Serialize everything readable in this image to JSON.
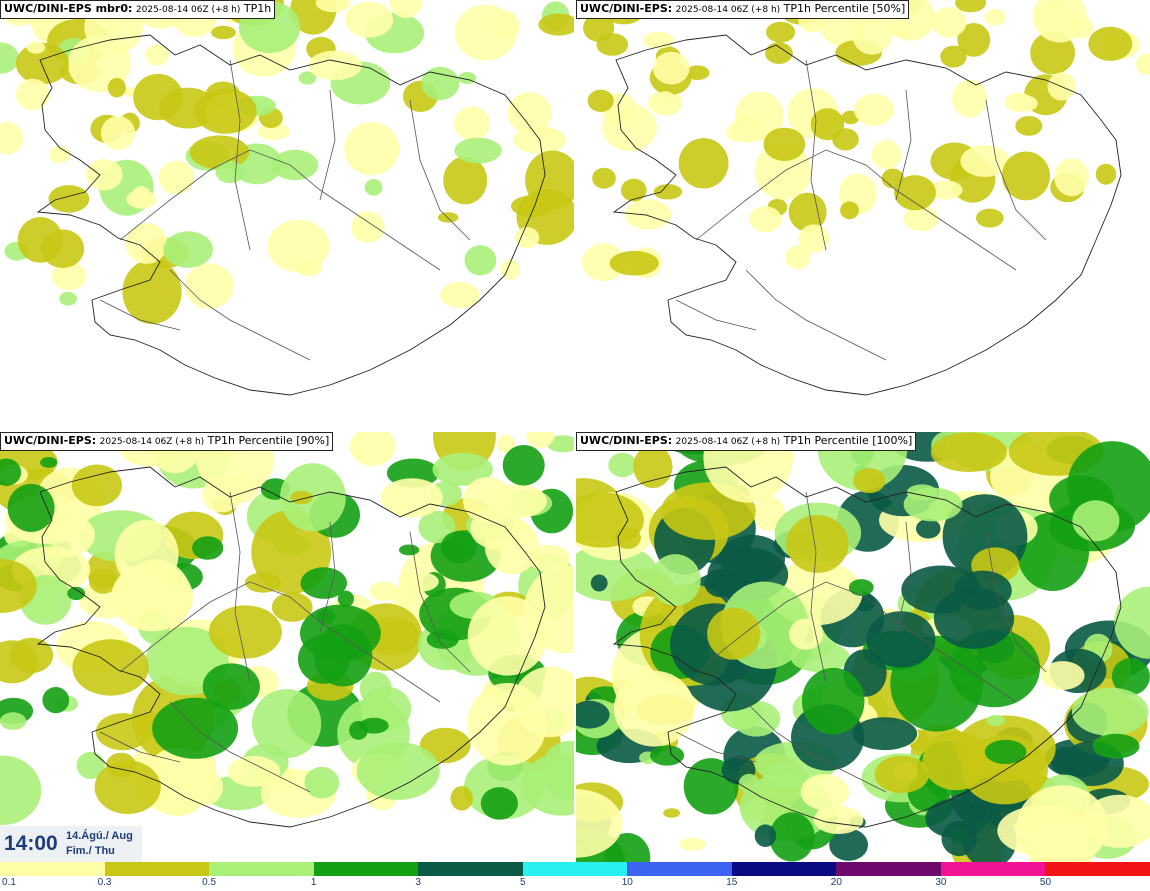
{
  "panels": [
    {
      "model": "UWC/DINI-EPS mbr0:",
      "date": "2025-08-14 06Z (+8 h)",
      "field": "TP1h",
      "intensity": 0.35
    },
    {
      "model": "UWC/DINI-EPS:",
      "date": "2025-08-14 06Z (+8 h)",
      "field": "TP1h Percentile [50%]",
      "intensity": 0.25
    },
    {
      "model": "UWC/DINI-EPS:",
      "date": "2025-08-14 06Z (+8 h)",
      "field": "TP1h Percentile [90%]",
      "intensity": 0.75
    },
    {
      "model": "UWC/DINI-EPS:",
      "date": "2025-08-14 06Z (+8 h)",
      "field": "TP1h Percentile [100%]",
      "intensity": 1.0
    }
  ],
  "time": {
    "clock": "14:00",
    "date_line1": "14.Ágú./ Aug",
    "date_line2": "Fim./ Thu"
  },
  "colorbar": {
    "colors": [
      "#ffffa8",
      "#c8c814",
      "#a8f078",
      "#14a014",
      "#0a5a46",
      "#28f0f0",
      "#3c64f0",
      "#0a0a82",
      "#6e0a6e",
      "#f01494",
      "#f01414"
    ],
    "ticks": [
      "0.1",
      "0.3",
      "0.5",
      "1",
      "3",
      "5",
      "10",
      "15",
      "20",
      "30",
      "50"
    ]
  }
}
